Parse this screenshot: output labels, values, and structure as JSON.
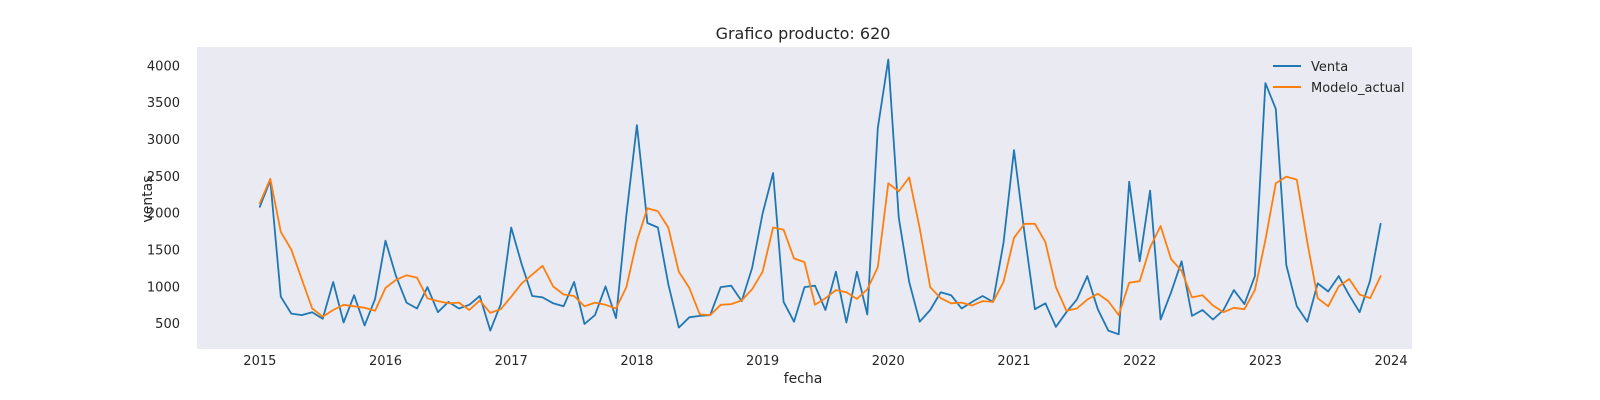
{
  "chart_data": {
    "type": "line",
    "title": "Grafico producto: 620",
    "xlabel": "fecha",
    "ylabel": "ventas",
    "x_start": "2015-01",
    "x": [
      "2015-01",
      "2015-02",
      "2015-03",
      "2015-04",
      "2015-05",
      "2015-06",
      "2015-07",
      "2015-08",
      "2015-09",
      "2015-10",
      "2015-11",
      "2015-12",
      "2016-01",
      "2016-02",
      "2016-03",
      "2016-04",
      "2016-05",
      "2016-06",
      "2016-07",
      "2016-08",
      "2016-09",
      "2016-10",
      "2016-11",
      "2016-12",
      "2017-01",
      "2017-02",
      "2017-03",
      "2017-04",
      "2017-05",
      "2017-06",
      "2017-07",
      "2017-08",
      "2017-09",
      "2017-10",
      "2017-11",
      "2017-12",
      "2018-01",
      "2018-02",
      "2018-03",
      "2018-04",
      "2018-05",
      "2018-06",
      "2018-07",
      "2018-08",
      "2018-09",
      "2018-10",
      "2018-11",
      "2018-12",
      "2019-01",
      "2019-02",
      "2019-03",
      "2019-04",
      "2019-05",
      "2019-06",
      "2019-07",
      "2019-08",
      "2019-09",
      "2019-10",
      "2019-11",
      "2019-12",
      "2020-01",
      "2020-02",
      "2020-03",
      "2020-04",
      "2020-05",
      "2020-06",
      "2020-07",
      "2020-08",
      "2020-09",
      "2020-10",
      "2020-11",
      "2020-12",
      "2021-01",
      "2021-02",
      "2021-03",
      "2021-04",
      "2021-05",
      "2021-06",
      "2021-07",
      "2021-08",
      "2021-09",
      "2021-10",
      "2021-11",
      "2021-12",
      "2022-01",
      "2022-02",
      "2022-03",
      "2022-04",
      "2022-05",
      "2022-06",
      "2022-07",
      "2022-08",
      "2022-09",
      "2022-10",
      "2022-11",
      "2022-12",
      "2023-01",
      "2023-02",
      "2023-03",
      "2023-04",
      "2023-05",
      "2023-06",
      "2023-07",
      "2023-08",
      "2023-09",
      "2023-10",
      "2023-11",
      "2023-12"
    ],
    "x_ticks": [
      "2015",
      "2016",
      "2017",
      "2018",
      "2019",
      "2020",
      "2021",
      "2022",
      "2023",
      "2024"
    ],
    "y_ticks": [
      500,
      1000,
      1500,
      2000,
      2500,
      3000,
      3500,
      4000
    ],
    "xlim": [
      "2014-07",
      "2024-03"
    ],
    "ylim": [
      150,
      4250
    ],
    "grid": false,
    "background": "#eaeaf2",
    "legend_position": "top-right",
    "series": [
      {
        "name": "Venta",
        "color": "#1f77b4",
        "values": [
          2080,
          2440,
          860,
          630,
          610,
          650,
          560,
          1060,
          510,
          880,
          470,
          830,
          1620,
          1140,
          780,
          700,
          990,
          650,
          790,
          700,
          750,
          870,
          400,
          760,
          1800,
          1300,
          870,
          850,
          770,
          730,
          1060,
          490,
          610,
          1000,
          570,
          1970,
          3190,
          1860,
          1800,
          1030,
          440,
          580,
          600,
          610,
          990,
          1010,
          800,
          1250,
          1990,
          2540,
          790,
          520,
          990,
          1010,
          680,
          1200,
          510,
          1200,
          620,
          3150,
          4080,
          1930,
          1060,
          520,
          680,
          920,
          880,
          700,
          790,
          870,
          790,
          1590,
          2850,
          1720,
          690,
          770,
          450,
          650,
          820,
          1140,
          690,
          400,
          350,
          2420,
          1340,
          2300,
          550,
          920,
          1340,
          600,
          680,
          550,
          680,
          950,
          760,
          1140,
          3760,
          3410,
          1290,
          730,
          520,
          1040,
          930,
          1140,
          880,
          650,
          1080,
          1850
        ]
      },
      {
        "name": "Modelo_actual",
        "color": "#ff7f0e",
        "values": [
          2130,
          2460,
          1740,
          1500,
          1100,
          700,
          590,
          680,
          750,
          730,
          710,
          670,
          980,
          1090,
          1150,
          1120,
          840,
          800,
          770,
          780,
          680,
          810,
          640,
          690,
          860,
          1040,
          1160,
          1280,
          1000,
          890,
          870,
          730,
          780,
          750,
          700,
          990,
          1620,
          2060,
          2020,
          1800,
          1200,
          980,
          620,
          610,
          750,
          760,
          810,
          960,
          1200,
          1800,
          1770,
          1380,
          1330,
          750,
          840,
          950,
          920,
          830,
          960,
          1260,
          2400,
          2290,
          2480,
          1790,
          990,
          840,
          770,
          780,
          740,
          800,
          790,
          1060,
          1660,
          1850,
          1850,
          1600,
          990,
          670,
          700,
          820,
          900,
          800,
          610,
          1050,
          1070,
          1530,
          1820,
          1370,
          1210,
          850,
          880,
          740,
          650,
          710,
          690,
          950,
          1630,
          2400,
          2490,
          2450,
          1600,
          840,
          730,
          1000,
          1100,
          890,
          840,
          1140
        ]
      }
    ]
  }
}
